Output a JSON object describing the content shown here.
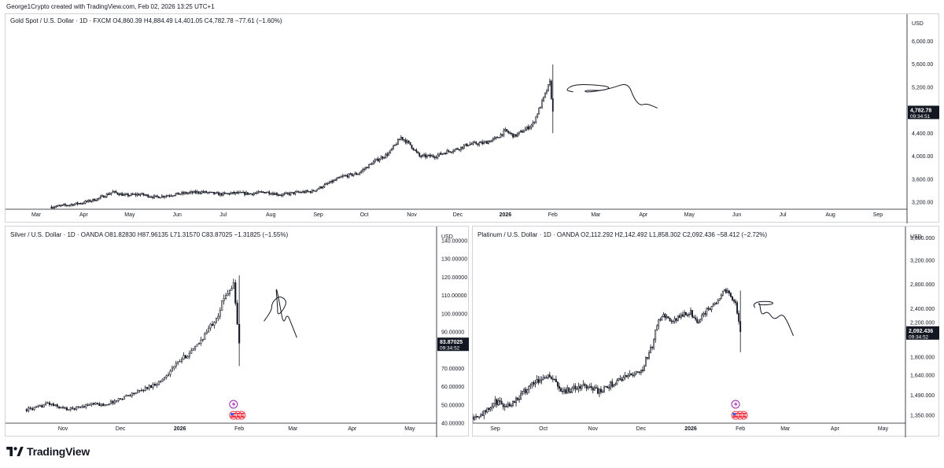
{
  "header": {
    "credit": "George1Crypto created with TradingView.com, Feb 02, 2026 13:25 UTC+1"
  },
  "brand": {
    "name": "TradingView"
  },
  "colors": {
    "candle": "#131722",
    "bg": "#ffffff",
    "grid": "#e0e3eb",
    "axis": "#131722"
  },
  "chart_data": [
    {
      "id": "gold",
      "type": "candlestick",
      "legend": "Gold Spot / U.S. Dollar · 1D · FXCM  O4,860.39  H4,884.49  L4,401.05  C4,782.78  −77.61 (−1.60%)",
      "currency": "USD",
      "y_ticks": [
        "6,000.00",
        "5,600.00",
        "5,200.00",
        "4,800.00",
        "4,400.00",
        "4,000.00",
        "3,600.00",
        "3,200.00"
      ],
      "y_tick_values": [
        6000,
        5600,
        5200,
        4800,
        4400,
        4000,
        3600,
        3200
      ],
      "ylim": [
        3080,
        6360
      ],
      "x_ticks": [
        {
          "label": "Mar",
          "i": -10
        },
        {
          "label": "Apr",
          "i": 21
        },
        {
          "label": "May",
          "i": 51
        },
        {
          "label": "Jun",
          "i": 82
        },
        {
          "label": "Jul",
          "i": 112
        },
        {
          "label": "Aug",
          "i": 143
        },
        {
          "label": "Sep",
          "i": 174
        },
        {
          "label": "Oct",
          "i": 204
        },
        {
          "label": "Nov",
          "i": 235
        },
        {
          "label": "Dec",
          "i": 265
        },
        {
          "label": "2026",
          "i": 296,
          "bold": true
        },
        {
          "label": "Feb",
          "i": 327
        },
        {
          "label": "Mar",
          "i": 355
        },
        {
          "label": "Apr",
          "i": 386
        },
        {
          "label": "May",
          "i": 416
        },
        {
          "label": "Jun",
          "i": 447
        },
        {
          "label": "Jul",
          "i": 477
        },
        {
          "label": "Aug",
          "i": 508
        },
        {
          "label": "Sep",
          "i": 539
        }
      ],
      "x_range": [
        -30,
        558
      ],
      "last_price": "4,782.78",
      "last_value": 4782.78,
      "countdown": "09:34:51",
      "anchors": [
        {
          "i": 0,
          "v": 3120
        },
        {
          "i": 10,
          "v": 3150
        },
        {
          "i": 20,
          "v": 3190
        },
        {
          "i": 30,
          "v": 3260
        },
        {
          "i": 40,
          "v": 3380
        },
        {
          "i": 48,
          "v": 3320
        },
        {
          "i": 58,
          "v": 3340
        },
        {
          "i": 68,
          "v": 3290
        },
        {
          "i": 78,
          "v": 3330
        },
        {
          "i": 88,
          "v": 3360
        },
        {
          "i": 98,
          "v": 3380
        },
        {
          "i": 110,
          "v": 3340
        },
        {
          "i": 120,
          "v": 3360
        },
        {
          "i": 130,
          "v": 3350
        },
        {
          "i": 140,
          "v": 3380
        },
        {
          "i": 150,
          "v": 3330
        },
        {
          "i": 160,
          "v": 3370
        },
        {
          "i": 170,
          "v": 3390
        },
        {
          "i": 180,
          "v": 3520
        },
        {
          "i": 190,
          "v": 3650
        },
        {
          "i": 200,
          "v": 3700
        },
        {
          "i": 210,
          "v": 3900
        },
        {
          "i": 220,
          "v": 4050
        },
        {
          "i": 228,
          "v": 4330
        },
        {
          "i": 234,
          "v": 4200
        },
        {
          "i": 240,
          "v": 4000
        },
        {
          "i": 250,
          "v": 4000
        },
        {
          "i": 258,
          "v": 4080
        },
        {
          "i": 265,
          "v": 4130
        },
        {
          "i": 272,
          "v": 4210
        },
        {
          "i": 282,
          "v": 4230
        },
        {
          "i": 290,
          "v": 4310
        },
        {
          "i": 296,
          "v": 4440
        },
        {
          "i": 302,
          "v": 4350
        },
        {
          "i": 308,
          "v": 4450
        },
        {
          "i": 314,
          "v": 4560
        },
        {
          "i": 320,
          "v": 4940
        },
        {
          "i": 325,
          "v": 5280
        },
        {
          "i": 327,
          "v": 4782
        }
      ],
      "annotation_path": [
        [
          340,
          5120
        ],
        [
          335,
          5150
        ],
        [
          341,
          5250
        ],
        [
          356,
          5240
        ],
        [
          365,
          5200
        ],
        [
          360,
          5140
        ],
        [
          348,
          5150
        ],
        [
          348,
          5110
        ],
        [
          358,
          5140
        ],
        [
          366,
          5190
        ],
        [
          376,
          5280
        ],
        [
          380,
          5000
        ],
        [
          384,
          4880
        ],
        [
          388,
          4920
        ],
        [
          395,
          4840
        ]
      ]
    },
    {
      "id": "silver",
      "type": "candlestick",
      "legend": "Silver / U.S. Dollar · 1D · OANDA  O81.82830  H87.96135  L71.31570  C83.87025  −1.31825 (−1.55%)",
      "currency": "USD",
      "y_ticks": [
        "140.00000",
        "130.00000",
        "120.00000",
        "110.00000",
        "100.00000",
        "90.00000",
        "70.00000",
        "60.00000",
        "50.00000",
        "40.00000"
      ],
      "y_tick_values": [
        140,
        130,
        120,
        110,
        100,
        90,
        70,
        60,
        50,
        40
      ],
      "ylim": [
        40,
        140
      ],
      "x_ticks": [
        {
          "label": "Nov",
          "i": 19
        },
        {
          "label": "Dec",
          "i": 49
        },
        {
          "label": "2026",
          "i": 80,
          "bold": true
        },
        {
          "label": "Feb",
          "i": 111
        },
        {
          "label": "Mar",
          "i": 139
        },
        {
          "label": "Apr",
          "i": 170
        },
        {
          "label": "May",
          "i": 200
        }
      ],
      "x_range": [
        -11,
        214
      ],
      "last_price": "83.87025",
      "last_value": 83.87,
      "countdown": "09:34:52",
      "anchors": [
        {
          "i": 0,
          "v": 47.5
        },
        {
          "i": 6,
          "v": 48.5
        },
        {
          "i": 11,
          "v": 51
        },
        {
          "i": 16,
          "v": 49
        },
        {
          "i": 22,
          "v": 47.5
        },
        {
          "i": 28,
          "v": 49
        },
        {
          "i": 34,
          "v": 50.5
        },
        {
          "i": 40,
          "v": 50
        },
        {
          "i": 46,
          "v": 52
        },
        {
          "i": 52,
          "v": 55
        },
        {
          "i": 58,
          "v": 57
        },
        {
          "i": 64,
          "v": 60
        },
        {
          "i": 70,
          "v": 63
        },
        {
          "i": 76,
          "v": 70
        },
        {
          "i": 82,
          "v": 76
        },
        {
          "i": 88,
          "v": 81
        },
        {
          "i": 94,
          "v": 90
        },
        {
          "i": 100,
          "v": 100
        },
        {
          "i": 104,
          "v": 111
        },
        {
          "i": 108,
          "v": 116
        },
        {
          "i": 111,
          "v": 83.87
        }
      ],
      "annotation_path": [
        [
          124,
          96
        ],
        [
          128,
          102
        ],
        [
          128,
          106
        ],
        [
          132,
          110
        ],
        [
          136,
          107
        ],
        [
          134,
          102
        ],
        [
          131,
          99
        ],
        [
          131,
          104
        ],
        [
          130,
          116
        ],
        [
          132,
          106
        ],
        [
          134,
          94
        ],
        [
          136,
          100
        ],
        [
          138,
          95
        ],
        [
          141,
          87
        ]
      ]
    },
    {
      "id": "platinum",
      "type": "candlestick",
      "legend": "Platinum / U.S. Dollar · 1D · OANDA  O2,112.292  H2,142.492  L1,858.302  C2,092.436  −58.412 (−2.72%)",
      "currency": "USD",
      "y_ticks": [
        "3,600.000",
        "3,200.000",
        "2,800.000",
        "2,400.000",
        "2,200.000",
        "1,800.000",
        "1,640.000",
        "1,490.000",
        "1,350.000"
      ],
      "y_tick_pos": [
        0.055,
        0.16,
        0.275,
        0.39,
        0.455,
        0.62,
        0.705,
        0.8,
        0.895
      ],
      "x_ticks": [
        {
          "label": "Sep",
          "i": 14
        },
        {
          "label": "Oct",
          "i": 44
        },
        {
          "label": "Nov",
          "i": 75
        },
        {
          "label": "Dec",
          "i": 105
        },
        {
          "label": "2026",
          "i": 136,
          "bold": true
        },
        {
          "label": "Feb",
          "i": 167
        },
        {
          "label": "Mar",
          "i": 195
        },
        {
          "label": "Apr",
          "i": 226
        },
        {
          "label": "May",
          "i": 256
        }
      ],
      "x_range": [
        0,
        270
      ],
      "last_price": "2,092.436",
      "last_value": 2092.4,
      "countdown": "09:34:52",
      "anchors": [
        {
          "i": 0,
          "v": 1340
        },
        {
          "i": 8,
          "v": 1370
        },
        {
          "i": 14,
          "v": 1440
        },
        {
          "i": 22,
          "v": 1420
        },
        {
          "i": 30,
          "v": 1490
        },
        {
          "i": 38,
          "v": 1590
        },
        {
          "i": 46,
          "v": 1640
        },
        {
          "i": 50,
          "v": 1610
        },
        {
          "i": 56,
          "v": 1520
        },
        {
          "i": 64,
          "v": 1540
        },
        {
          "i": 72,
          "v": 1560
        },
        {
          "i": 80,
          "v": 1510
        },
        {
          "i": 86,
          "v": 1570
        },
        {
          "i": 94,
          "v": 1620
        },
        {
          "i": 100,
          "v": 1650
        },
        {
          "i": 106,
          "v": 1700
        },
        {
          "i": 112,
          "v": 1930
        },
        {
          "i": 116,
          "v": 2250
        },
        {
          "i": 120,
          "v": 2300
        },
        {
          "i": 124,
          "v": 2200
        },
        {
          "i": 130,
          "v": 2300
        },
        {
          "i": 136,
          "v": 2350
        },
        {
          "i": 140,
          "v": 2200
        },
        {
          "i": 146,
          "v": 2380
        },
        {
          "i": 152,
          "v": 2500
        },
        {
          "i": 156,
          "v": 2700
        },
        {
          "i": 160,
          "v": 2650
        },
        {
          "i": 164,
          "v": 2500
        },
        {
          "i": 167,
          "v": 2092
        }
      ],
      "annotation_path": [
        [
          176,
          2420
        ],
        [
          175,
          2470
        ],
        [
          178,
          2520
        ],
        [
          186,
          2520
        ],
        [
          188,
          2480
        ],
        [
          182,
          2460
        ],
        [
          178,
          2470
        ],
        [
          179,
          2500
        ],
        [
          180,
          2300
        ],
        [
          184,
          2370
        ],
        [
          188,
          2230
        ],
        [
          193,
          2330
        ],
        [
          196,
          2230
        ],
        [
          200,
          2050
        ]
      ]
    }
  ],
  "badges": {
    "silver_events": [
      "lightning-icon",
      "us-flag-icon"
    ],
    "platinum_events": [
      "lightning-icon",
      "us-flag-icon"
    ]
  }
}
